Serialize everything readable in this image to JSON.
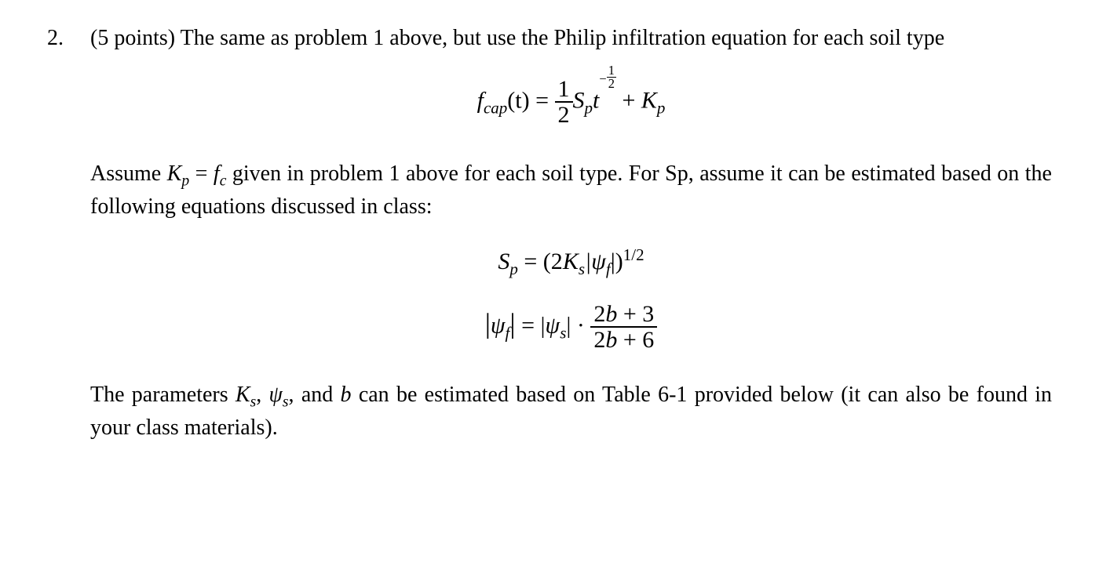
{
  "problem": {
    "number": "2.",
    "points_prefix": "(5 points) ",
    "intro": "The same as problem 1 above, but use the Philip infiltration equation for each soil type",
    "assume_text_a": "Assume ",
    "kp": "K",
    "kp_sub": "p",
    "eq_sign": " = ",
    "fc": "f",
    "fc_sub": "c",
    "assume_text_b": " given in problem 1 above for each soil type. For Sp, assume it can be estimated based on the following equations discussed in class:",
    "param_text_a": "The parameters ",
    "Ks": "K",
    "Ks_sub": "s",
    "comma1": ", ",
    "psi_s": "ψ",
    "psi_s_sub": "s",
    "comma2": ", and ",
    "b": "b",
    "param_text_b": " can be estimated based on Table 6-1 provided below (it can also be found in your class materials).",
    "eq1": {
      "f": "f",
      "cap": "cap",
      "t_paren": "(t) = ",
      "half_n": "1",
      "half_d": "2",
      "S": "S",
      "Ssub": "p",
      "t": "t",
      "neg": "−",
      "exp_n": "1",
      "exp_d": "2",
      "plus": " + ",
      "K": "K",
      "Ksub": "p"
    },
    "eq2": {
      "S": "S",
      "Ssub": "p",
      "eq": " = (2",
      "K": "K",
      "Ksub": "s",
      "psi": "|ψ",
      "psisub": "f",
      "close": "|)",
      "exp": "1/2"
    },
    "eq3": {
      "lhs_open": "|",
      "psi_f": "ψ",
      "psi_f_sub": "f",
      "lhs_close": "|",
      "eq": " = ",
      "rhs_open": "|",
      "psi_s": "ψ",
      "psi_s_sub": "s",
      "rhs_close": "|",
      "dot": " · ",
      "frac_n": "2b + 3",
      "frac_d": "2b + 6"
    }
  }
}
